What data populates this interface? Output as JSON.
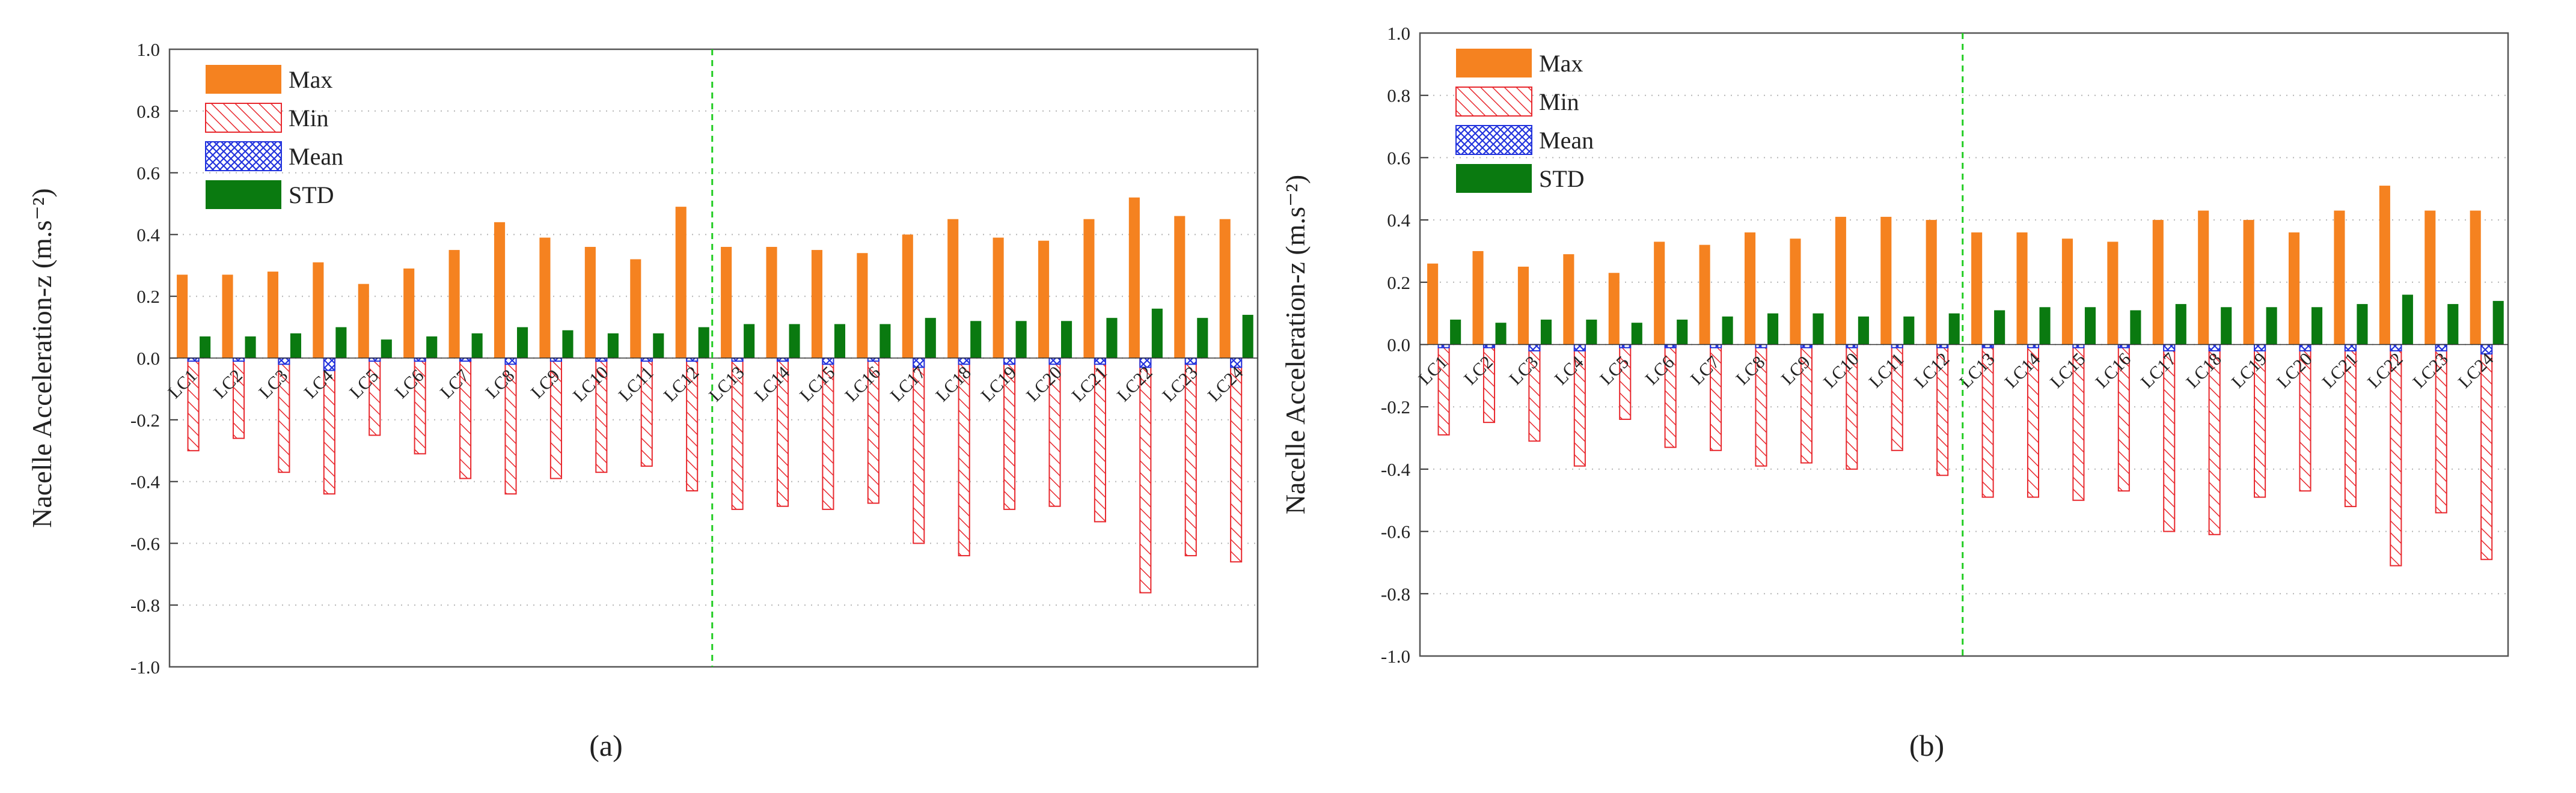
{
  "colors": {
    "max": "#f58220",
    "min": "#e8282e",
    "mean": "#2233dd",
    "std": "#0a7a10",
    "divider": "#22cc22",
    "grid": "#b5b5b5"
  },
  "chart_data": [
    {
      "type": "bar",
      "panel_label": "(a)",
      "ylabel": "Nacelle Acceleration-z (m.s⁻²)",
      "ylim": [
        -1.0,
        1.0
      ],
      "yticks": [
        "1.0",
        "0.8",
        "0.6",
        "0.4",
        "0.2",
        "0.0",
        "-0.2",
        "-0.4",
        "-0.6",
        "-0.8",
        "-1.0"
      ],
      "grid": "horizontal dotted",
      "legend_position": "top-left",
      "divider_after_category": 12,
      "categories": [
        "LC1",
        "LC2",
        "LC3",
        "LC4",
        "LC5",
        "LC6",
        "LC7",
        "LC8",
        "LC9",
        "LC10",
        "LC11",
        "LC12",
        "LC13",
        "LC14",
        "LC15",
        "LC16",
        "LC17",
        "LC18",
        "LC19",
        "LC20",
        "LC21",
        "LC22",
        "LC23",
        "LC24"
      ],
      "series": [
        {
          "name": "Max",
          "pattern": "solid",
          "values": [
            0.27,
            0.27,
            0.28,
            0.31,
            0.24,
            0.29,
            0.35,
            0.44,
            0.39,
            0.36,
            0.32,
            0.49,
            0.36,
            0.36,
            0.35,
            0.34,
            0.4,
            0.45,
            0.39,
            0.38,
            0.45,
            0.52,
            0.46,
            0.45
          ]
        },
        {
          "name": "Min",
          "pattern": "diagonal-hatch",
          "values": [
            -0.3,
            -0.26,
            -0.37,
            -0.44,
            -0.25,
            -0.31,
            -0.39,
            -0.44,
            -0.39,
            -0.37,
            -0.35,
            -0.43,
            -0.49,
            -0.48,
            -0.49,
            -0.47,
            -0.6,
            -0.64,
            -0.49,
            -0.48,
            -0.53,
            -0.76,
            -0.64,
            -0.66
          ]
        },
        {
          "name": "Mean",
          "pattern": "cross-hatch",
          "values": [
            -0.01,
            -0.01,
            -0.02,
            -0.04,
            -0.01,
            -0.01,
            -0.01,
            -0.02,
            -0.01,
            -0.01,
            -0.01,
            -0.01,
            -0.01,
            -0.01,
            -0.02,
            -0.01,
            -0.03,
            -0.02,
            -0.02,
            -0.02,
            -0.02,
            -0.03,
            -0.02,
            -0.03
          ]
        },
        {
          "name": "STD",
          "pattern": "solid",
          "values": [
            0.07,
            0.07,
            0.08,
            0.1,
            0.06,
            0.07,
            0.08,
            0.1,
            0.09,
            0.08,
            0.08,
            0.1,
            0.11,
            0.11,
            0.11,
            0.11,
            0.13,
            0.12,
            0.12,
            0.12,
            0.13,
            0.16,
            0.13,
            0.14
          ]
        }
      ]
    },
    {
      "type": "bar",
      "panel_label": "(b)",
      "ylabel": "Nacelle Acceleration-z (m.s⁻²)",
      "ylim": [
        -1.0,
        1.0
      ],
      "yticks": [
        "1.0",
        "0.8",
        "0.6",
        "0.4",
        "0.2",
        "0.0",
        "-0.2",
        "-0.4",
        "-0.6",
        "-0.8",
        "-1.0"
      ],
      "grid": "horizontal dotted",
      "legend_position": "top-left",
      "divider_after_category": 12,
      "categories": [
        "LC1",
        "LC2",
        "LC3",
        "LC4",
        "LC5",
        "LC6",
        "LC7",
        "LC8",
        "LC9",
        "LC10",
        "LC11",
        "LC12",
        "LC13",
        "LC14",
        "LC15",
        "LC16",
        "LC17",
        "LC18",
        "LC19",
        "LC20",
        "LC21",
        "LC22",
        "LC23",
        "LC24"
      ],
      "series": [
        {
          "name": "Max",
          "pattern": "solid",
          "values": [
            0.26,
            0.3,
            0.25,
            0.29,
            0.23,
            0.33,
            0.32,
            0.36,
            0.34,
            0.41,
            0.41,
            0.4,
            0.36,
            0.36,
            0.34,
            0.33,
            0.4,
            0.43,
            0.4,
            0.36,
            0.43,
            0.51,
            0.43,
            0.43
          ]
        },
        {
          "name": "Min",
          "pattern": "diagonal-hatch",
          "values": [
            -0.29,
            -0.25,
            -0.31,
            -0.39,
            -0.24,
            -0.33,
            -0.34,
            -0.39,
            -0.38,
            -0.4,
            -0.34,
            -0.42,
            -0.49,
            -0.49,
            -0.5,
            -0.47,
            -0.6,
            -0.61,
            -0.49,
            -0.47,
            -0.52,
            -0.71,
            -0.54,
            -0.69
          ]
        },
        {
          "name": "Mean",
          "pattern": "cross-hatch",
          "values": [
            -0.01,
            -0.01,
            -0.02,
            -0.02,
            -0.01,
            -0.01,
            -0.01,
            -0.01,
            -0.01,
            -0.01,
            -0.01,
            -0.01,
            -0.01,
            -0.01,
            -0.01,
            -0.01,
            -0.02,
            -0.02,
            -0.02,
            -0.02,
            -0.02,
            -0.02,
            -0.02,
            -0.03
          ]
        },
        {
          "name": "STD",
          "pattern": "solid",
          "values": [
            0.08,
            0.07,
            0.08,
            0.08,
            0.07,
            0.08,
            0.09,
            0.1,
            0.1,
            0.09,
            0.09,
            0.1,
            0.11,
            0.12,
            0.12,
            0.11,
            0.13,
            0.12,
            0.12,
            0.12,
            0.13,
            0.16,
            0.13,
            0.14
          ]
        }
      ]
    }
  ]
}
